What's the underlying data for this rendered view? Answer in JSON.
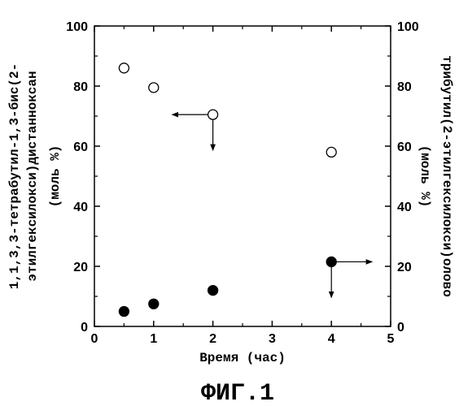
{
  "chart_data": {
    "type": "scatter",
    "xlabel": "Время (час)",
    "ylabel_left": [
      "1,1,3,3-тетрабутил-1,3-бис(2-",
      "этилгексилокси)дистанноксан",
      "(моль %)"
    ],
    "ylabel_right": [
      "трибутил(2-этилгексилокси)олово",
      "(моль %)"
    ],
    "figure_label": "ФИГ.1",
    "xlim": [
      0,
      5
    ],
    "ylim": [
      0,
      100
    ],
    "x_ticks": [
      "0",
      "1",
      "2",
      "3",
      "4",
      "5"
    ],
    "y_ticks_left": [
      "0",
      "20",
      "40",
      "60",
      "80",
      "100"
    ],
    "y_ticks_right": [
      "0",
      "20",
      "40",
      "60",
      "80",
      "100"
    ],
    "series": [
      {
        "marker": "open-circle",
        "axis": "left",
        "x": [
          0.5,
          1.0,
          2.0,
          4.0
        ],
        "y": [
          86,
          79.5,
          70.5,
          58
        ]
      },
      {
        "marker": "filled-circle",
        "axis": "right",
        "x": [
          0.5,
          1.0,
          2.0,
          4.0
        ],
        "y": [
          5,
          7.5,
          12,
          21.5
        ]
      }
    ],
    "annotations": [
      {
        "type": "axis-arrows",
        "series": 0,
        "point": 2,
        "horizontal": "left",
        "vertical": "down"
      },
      {
        "type": "axis-arrows",
        "series": 1,
        "point": 3,
        "horizontal": "right",
        "vertical": "down"
      }
    ]
  }
}
